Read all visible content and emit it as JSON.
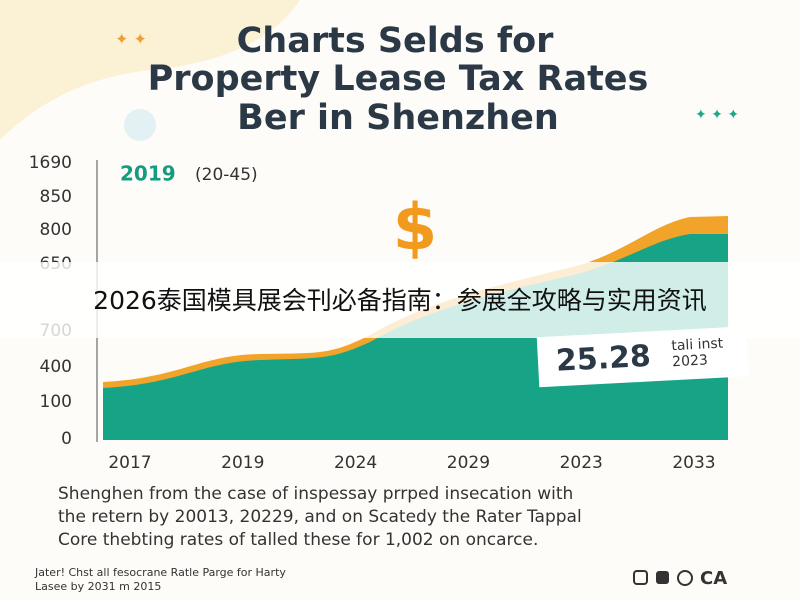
{
  "title": [
    "Charts Selds for",
    "Property Lease Tax Rates",
    "Ber in Shenzhen"
  ],
  "chart": {
    "highlight_year": "2019",
    "highlight_range": "(20-45)",
    "y_labels": [
      "1690",
      "850",
      "800",
      "650",
      "700",
      "400",
      "100",
      "0"
    ],
    "x_labels": [
      "2017",
      "2019",
      "2024",
      "2029",
      "2023",
      "2033"
    ],
    "callout": {
      "value": "25.28",
      "note": [
        "tali inst",
        "2023"
      ]
    }
  },
  "description": [
    "Shenghen from the case of inspessay prrped insecation with",
    "the retern by 20013, 20229, and on Scatedy the Rater Tappal",
    "Core thebting rates of talled these for 1,002 on oncarce."
  ],
  "footer": {
    "lines": [
      "Jater! Chst all fesocrane Ratle Parge for Harty",
      "Lasee by 2031 m 2015"
    ],
    "brand": "CA"
  },
  "banner": "2026泰国模具展会刊必备指南：参展全攻略与实用资讯"
}
